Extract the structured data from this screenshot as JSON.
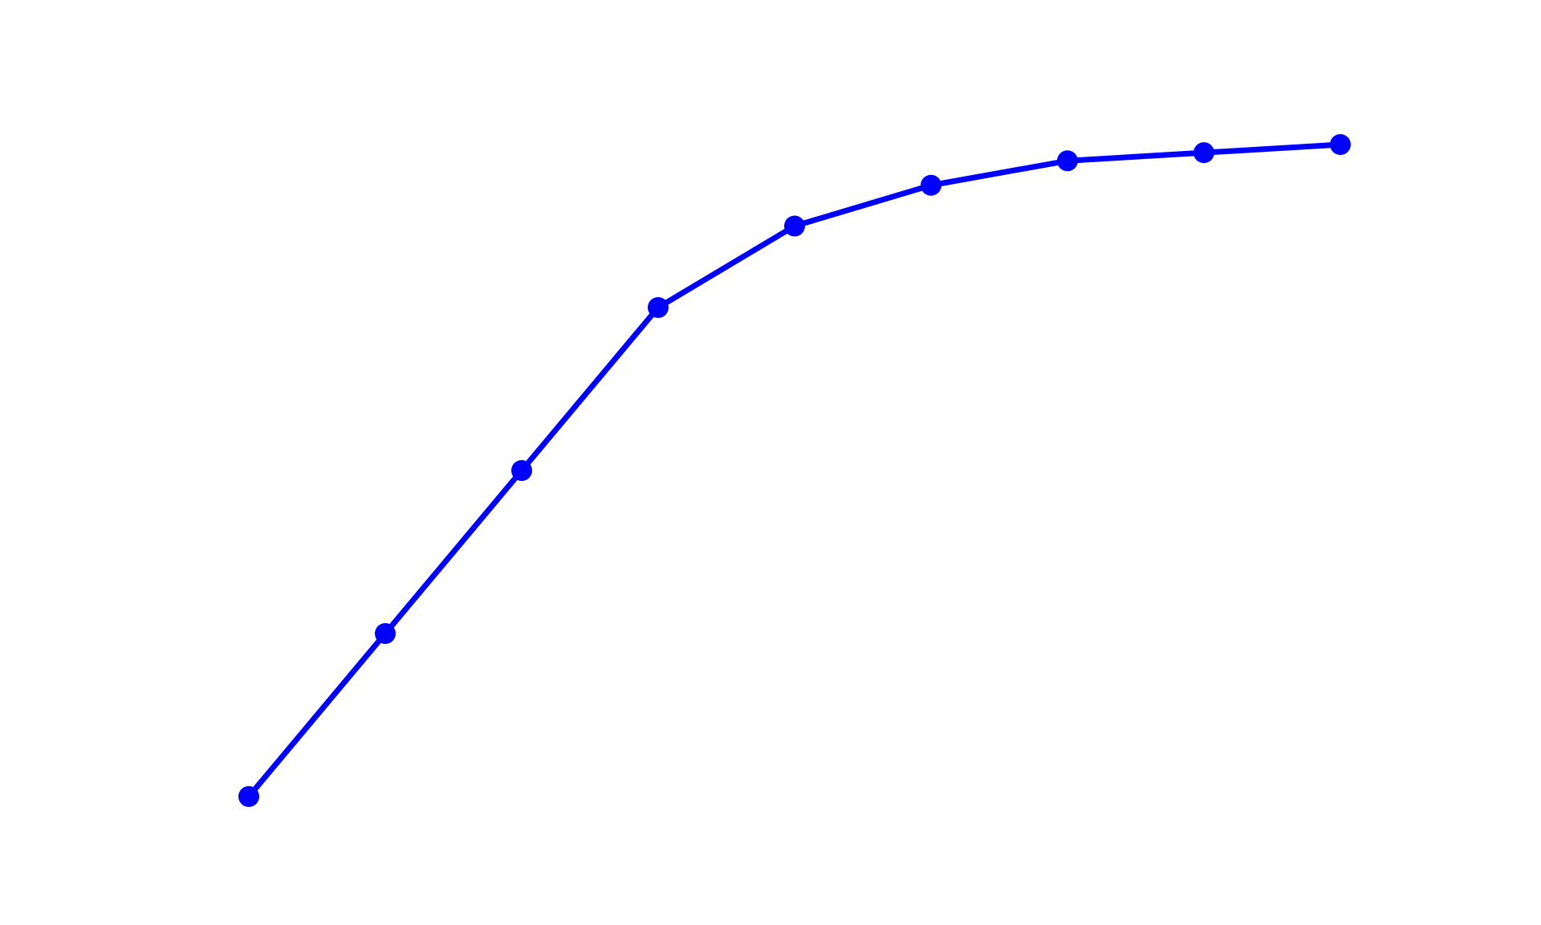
{
  "chart_data": {
    "type": "line",
    "x": [
      1,
      2,
      3,
      4,
      5,
      6,
      7,
      8,
      9
    ],
    "series": [
      {
        "values": [
          0.0,
          0.2,
          0.4,
          0.6,
          0.7,
          0.75,
          0.78,
          0.79,
          0.8
        ],
        "color": "#0000ff"
      }
    ],
    "xlim": [
      1,
      9
    ],
    "ylim": [
      0.0,
      0.8
    ],
    "grid": false,
    "axes_visible": false
  }
}
